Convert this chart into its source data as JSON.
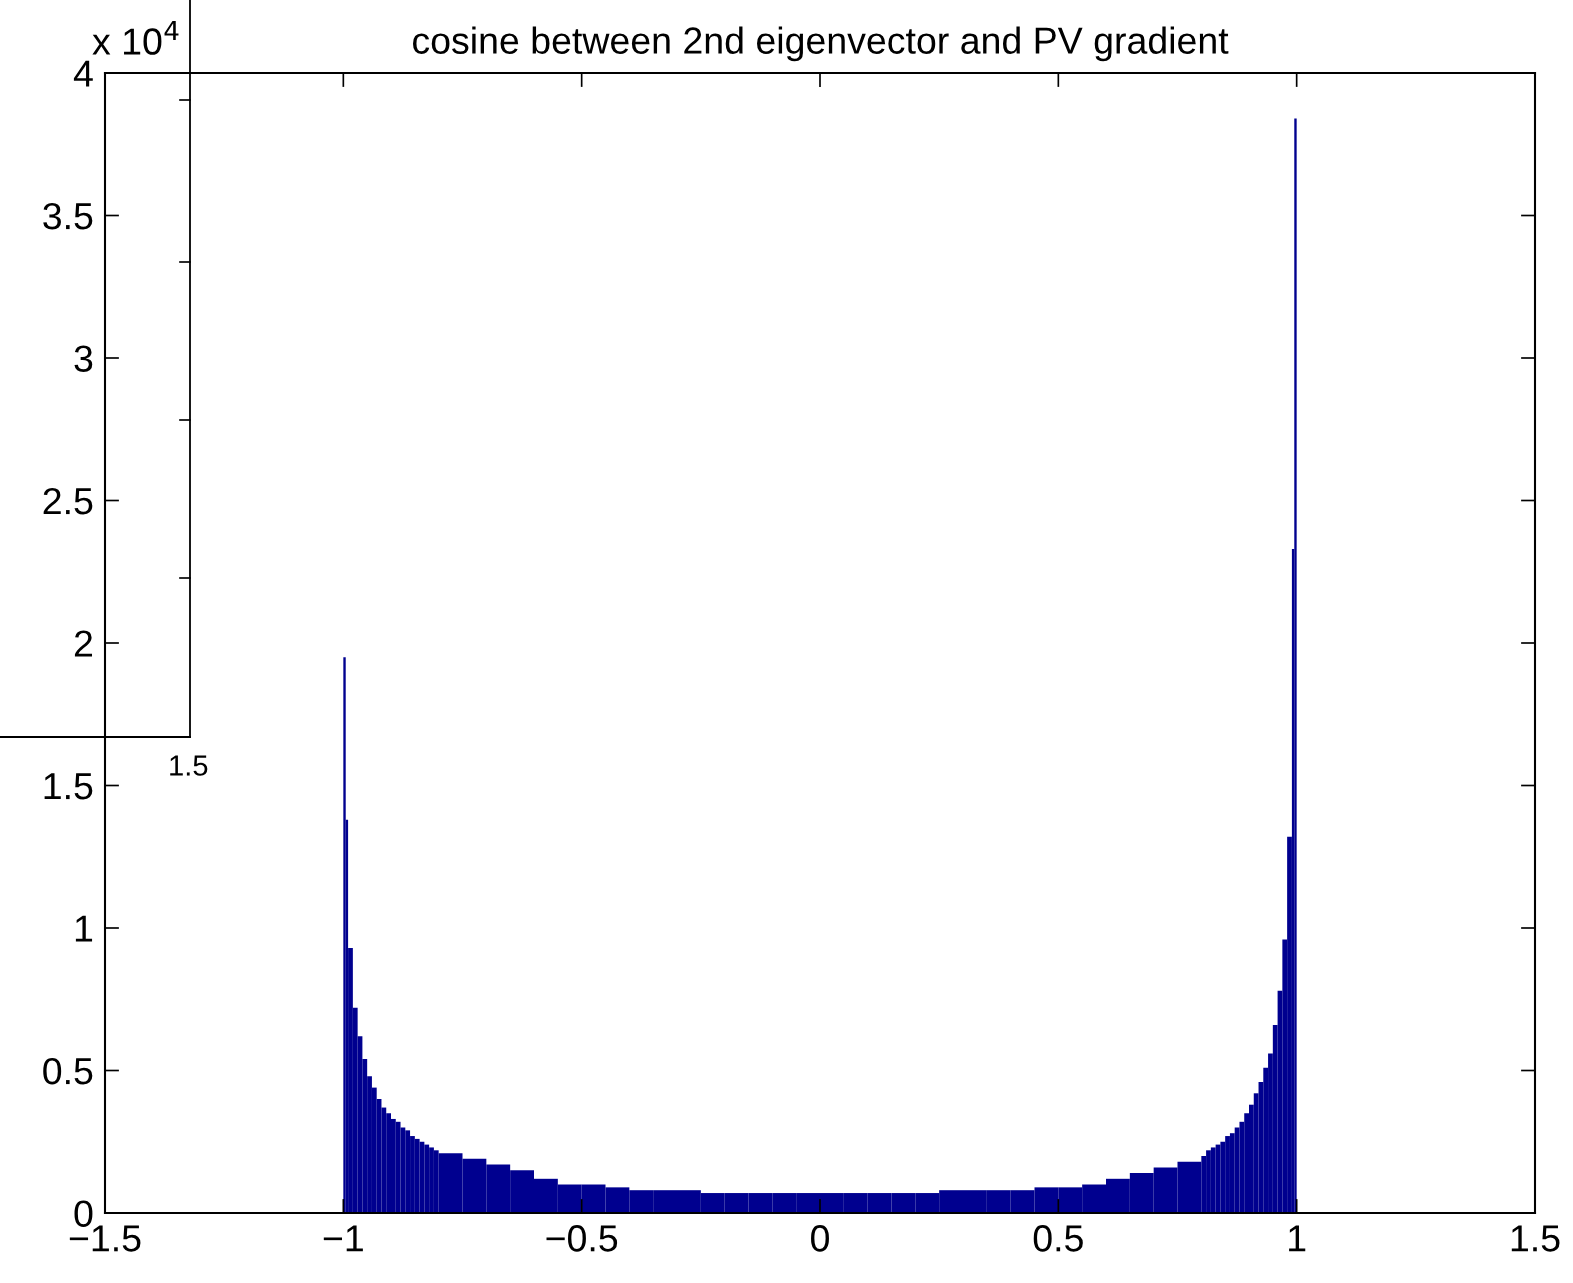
{
  "chart_data": {
    "type": "histogram",
    "title": "cosine between 2nd eigenvector and PV gradient",
    "color": "#00008f",
    "bins": [
      -1,
      -0.995,
      -0.99,
      -0.98,
      -0.97,
      -0.96,
      -0.95,
      -0.94,
      -0.93,
      -0.92,
      -0.91,
      -0.9,
      -0.89,
      -0.88,
      -0.87,
      -0.86,
      -0.85,
      -0.84,
      -0.83,
      -0.82,
      -0.81,
      -0.8,
      -0.75,
      -0.7,
      -0.65,
      -0.6,
      -0.55,
      -0.5,
      -0.45,
      -0.4,
      -0.35,
      -0.3,
      -0.25,
      -0.2,
      -0.15,
      -0.1,
      -0.05,
      0,
      0.05,
      0.1,
      0.15,
      0.2,
      0.25,
      0.3,
      0.35,
      0.4,
      0.45,
      0.5,
      0.55,
      0.6,
      0.65,
      0.7,
      0.75,
      0.8,
      0.81,
      0.82,
      0.83,
      0.84,
      0.85,
      0.86,
      0.87,
      0.88,
      0.89,
      0.9,
      0.91,
      0.92,
      0.93,
      0.94,
      0.95,
      0.96,
      0.97,
      0.98,
      0.99,
      0.995,
      1
    ],
    "values": [
      1.95,
      1.38,
      0.93,
      0.72,
      0.62,
      0.54,
      0.48,
      0.44,
      0.4,
      0.37,
      0.35,
      0.33,
      0.32,
      0.3,
      0.29,
      0.27,
      0.26,
      0.25,
      0.24,
      0.23,
      0.22,
      0.21,
      0.19,
      0.17,
      0.15,
      0.12,
      0.1,
      0.1,
      0.09,
      0.08,
      0.08,
      0.08,
      0.07,
      0.07,
      0.07,
      0.07,
      0.07,
      0.07,
      0.07,
      0.07,
      0.07,
      0.07,
      0.08,
      0.08,
      0.08,
      0.08,
      0.09,
      0.09,
      0.1,
      0.12,
      0.14,
      0.16,
      0.18,
      0.2,
      0.22,
      0.23,
      0.24,
      0.25,
      0.27,
      0.28,
      0.3,
      0.32,
      0.35,
      0.38,
      0.42,
      0.46,
      0.51,
      0.56,
      0.66,
      0.78,
      0.96,
      1.32,
      2.33,
      3.84
    ],
    "xlim": [
      -1.5,
      1.5
    ],
    "xticks": [
      {
        "value": -1.5,
        "label": "−1.5"
      },
      {
        "value": -1,
        "label": "−1"
      },
      {
        "value": -0.5,
        "label": "−0.5"
      },
      0,
      0.5,
      1,
      1.5
    ],
    "ylim": [
      0,
      4
    ],
    "yticks": [
      0,
      0.5,
      1,
      1.5,
      2,
      2.5,
      3,
      3.5,
      4
    ],
    "grid": false,
    "annotations": [
      "x 10$^{4}$",
      "1.5"
    ]
  }
}
